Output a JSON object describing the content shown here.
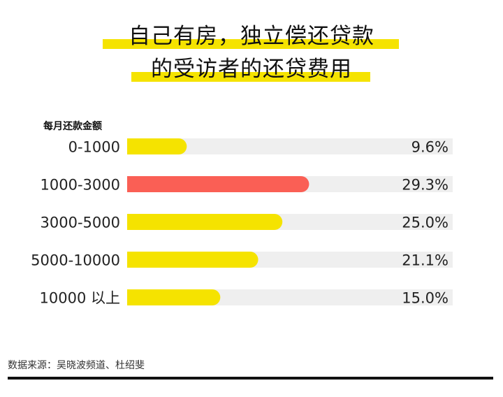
{
  "title_lines": [
    "自己有房，独立偿还贷款",
    "的受访者的还贷费用"
  ],
  "chart_data": {
    "type": "bar",
    "orientation": "horizontal",
    "ylabel": "每月还款金额",
    "categories": [
      "0-1000",
      "1000-3000",
      "3000-5000",
      "5000-10000",
      "10000 以上"
    ],
    "values": [
      9.6,
      29.3,
      25.0,
      21.1,
      15.0
    ],
    "value_labels": [
      "9.6%",
      "29.3%",
      "25.0%",
      "21.1%",
      "15.0%"
    ],
    "highlight_index": 1,
    "xlim": [
      0,
      45
    ],
    "colors": {
      "bar": "#f5e300",
      "highlight": "#fa5f55",
      "track": "#efefef"
    }
  },
  "source": "数据来源：吴晓波频道、杜绍斐"
}
